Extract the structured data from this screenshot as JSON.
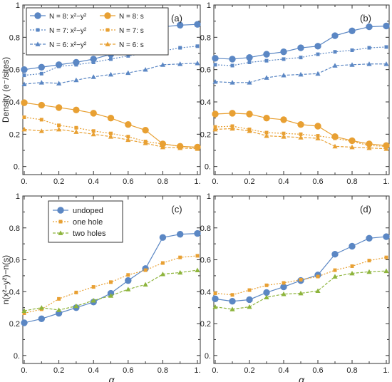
{
  "chart_data": [
    {
      "type": "line",
      "panel_label": "(a)",
      "ylabel": "Density (e⁻/sites)",
      "xlabel": "",
      "xlim": [
        0,
        1
      ],
      "ylim": [
        -0.05,
        1
      ],
      "x_ticks": [
        "0.",
        "0.2",
        "0.4",
        "0.6",
        "0.8",
        "1."
      ],
      "y_ticks": [
        "0.",
        "0.2",
        "0.4",
        "0.6",
        "0.8",
        "1"
      ],
      "legend": "top-left, 2 columns",
      "x": [
        0,
        0.1,
        0.2,
        0.3,
        0.4,
        0.5,
        0.6,
        0.7,
        0.8,
        0.9,
        1.0
      ],
      "series": [
        {
          "name": "N = 8: x²−y²",
          "color": "#5b87c4",
          "marker": "circle",
          "dash": "solid",
          "values": [
            0.6,
            0.615,
            0.63,
            0.645,
            0.665,
            0.695,
            0.74,
            0.77,
            0.865,
            0.875,
            0.88
          ]
        },
        {
          "name": "N = 7: x²−y²",
          "color": "#5b87c4",
          "marker": "square",
          "dash": "dotted",
          "values": [
            0.565,
            0.575,
            0.62,
            0.63,
            0.645,
            0.665,
            0.685,
            0.7,
            0.715,
            0.735,
            0.745
          ]
        },
        {
          "name": "N = 6: x²−y²",
          "color": "#5b87c4",
          "marker": "triangle",
          "dash": "dashed",
          "values": [
            0.51,
            0.52,
            0.515,
            0.535,
            0.555,
            0.57,
            0.58,
            0.6,
            0.63,
            0.635,
            0.64
          ]
        },
        {
          "name": "N = 8: s",
          "color": "#e8a033",
          "marker": "circle",
          "dash": "solid",
          "values": [
            0.395,
            0.38,
            0.365,
            0.35,
            0.33,
            0.3,
            0.26,
            0.225,
            0.14,
            0.125,
            0.12
          ]
        },
        {
          "name": "N = 7: s",
          "color": "#e8a033",
          "marker": "square",
          "dash": "dotted",
          "values": [
            0.305,
            0.29,
            0.255,
            0.24,
            0.22,
            0.205,
            0.185,
            0.155,
            0.14,
            0.125,
            0.115
          ]
        },
        {
          "name": "N = 6: s",
          "color": "#e8a033",
          "marker": "triangle",
          "dash": "dashed",
          "values": [
            0.23,
            0.22,
            0.23,
            0.215,
            0.2,
            0.185,
            0.165,
            0.145,
            0.12,
            0.115,
            0.11
          ]
        }
      ]
    },
    {
      "type": "line",
      "panel_label": "(b)",
      "ylabel": "",
      "xlabel": "",
      "xlim": [
        0,
        1
      ],
      "ylim": [
        -0.05,
        1
      ],
      "x_ticks": [
        "0.",
        "0.2",
        "0.4",
        "0.6",
        "0.8",
        "1."
      ],
      "y_ticks": [
        "0.",
        "0.2",
        "0.4",
        "0.6",
        "0.8",
        "1"
      ],
      "x": [
        0,
        0.1,
        0.2,
        0.3,
        0.4,
        0.5,
        0.6,
        0.7,
        0.8,
        0.9,
        1.0
      ],
      "series": [
        {
          "color": "#5b87c4",
          "marker": "circle",
          "dash": "solid",
          "values": [
            0.67,
            0.665,
            0.675,
            0.695,
            0.71,
            0.735,
            0.745,
            0.81,
            0.84,
            0.865,
            0.87
          ]
        },
        {
          "color": "#5b87c4",
          "marker": "square",
          "dash": "dotted",
          "values": [
            0.63,
            0.625,
            0.645,
            0.655,
            0.665,
            0.675,
            0.695,
            0.71,
            0.72,
            0.735,
            0.74
          ]
        },
        {
          "color": "#5b87c4",
          "marker": "triangle",
          "dash": "dashed",
          "values": [
            0.525,
            0.52,
            0.52,
            0.55,
            0.565,
            0.57,
            0.575,
            0.625,
            0.63,
            0.635,
            0.635
          ]
        },
        {
          "color": "#e8a033",
          "marker": "circle",
          "dash": "solid",
          "values": [
            0.325,
            0.33,
            0.325,
            0.3,
            0.29,
            0.26,
            0.25,
            0.185,
            0.16,
            0.14,
            0.13
          ]
        },
        {
          "color": "#e8a033",
          "marker": "square",
          "dash": "dotted",
          "values": [
            0.245,
            0.25,
            0.23,
            0.21,
            0.205,
            0.2,
            0.19,
            0.175,
            0.155,
            0.13,
            0.125
          ]
        },
        {
          "color": "#e8a033",
          "marker": "triangle",
          "dash": "dashed",
          "values": [
            0.23,
            0.235,
            0.22,
            0.19,
            0.185,
            0.18,
            0.175,
            0.125,
            0.12,
            0.115,
            0.11
          ]
        }
      ]
    },
    {
      "type": "line",
      "panel_label": "(c)",
      "ylabel": "n(x²−y²)−n(s)",
      "xlabel": "α",
      "xlim": [
        0,
        1
      ],
      "ylim": [
        -0.05,
        1
      ],
      "x_ticks": [
        "0.",
        "0.2",
        "0.4",
        "0.6",
        "0.8",
        "1."
      ],
      "y_ticks": [
        "0.",
        "0.2",
        "0.4",
        "0.6",
        "0.8",
        "1"
      ],
      "legend": "top-left, 1 column",
      "x": [
        0,
        0.1,
        0.2,
        0.3,
        0.4,
        0.5,
        0.6,
        0.7,
        0.8,
        0.9,
        1.0
      ],
      "series": [
        {
          "name": "undoped",
          "color": "#5b87c4",
          "marker": "circle",
          "dash": "solid",
          "values": [
            0.205,
            0.23,
            0.265,
            0.3,
            0.335,
            0.39,
            0.47,
            0.545,
            0.74,
            0.76,
            0.765
          ]
        },
        {
          "name": "one hole",
          "color": "#e8a033",
          "marker": "square",
          "dash": "dotted",
          "values": [
            0.265,
            0.29,
            0.355,
            0.395,
            0.43,
            0.46,
            0.505,
            0.535,
            0.58,
            0.615,
            0.625
          ]
        },
        {
          "name": "two holes",
          "color": "#8db43c",
          "marker": "triangle",
          "dash": "dashed",
          "values": [
            0.28,
            0.3,
            0.285,
            0.31,
            0.345,
            0.375,
            0.415,
            0.445,
            0.51,
            0.52,
            0.535
          ]
        }
      ]
    },
    {
      "type": "line",
      "panel_label": "(d)",
      "ylabel": "",
      "xlabel": "α",
      "xlim": [
        0,
        1
      ],
      "ylim": [
        -0.05,
        1
      ],
      "x_ticks": [
        "0.",
        "0.2",
        "0.4",
        "0.6",
        "0.8",
        "1."
      ],
      "y_ticks": [
        "0.",
        "0.2",
        "0.4",
        "0.6",
        "0.8",
        "1"
      ],
      "x": [
        0,
        0.1,
        0.2,
        0.3,
        0.4,
        0.5,
        0.6,
        0.7,
        0.8,
        0.9,
        1.0
      ],
      "series": [
        {
          "color": "#5b87c4",
          "marker": "circle",
          "dash": "solid",
          "values": [
            0.355,
            0.34,
            0.35,
            0.395,
            0.43,
            0.47,
            0.505,
            0.635,
            0.685,
            0.735,
            0.745
          ]
        },
        {
          "color": "#e8a033",
          "marker": "square",
          "dash": "dotted",
          "values": [
            0.39,
            0.38,
            0.41,
            0.44,
            0.455,
            0.475,
            0.495,
            0.535,
            0.56,
            0.595,
            0.615
          ]
        },
        {
          "color": "#8db43c",
          "marker": "triangle",
          "dash": "dashed",
          "values": [
            0.305,
            0.29,
            0.305,
            0.365,
            0.385,
            0.39,
            0.405,
            0.495,
            0.515,
            0.525,
            0.53
          ]
        }
      ]
    }
  ]
}
